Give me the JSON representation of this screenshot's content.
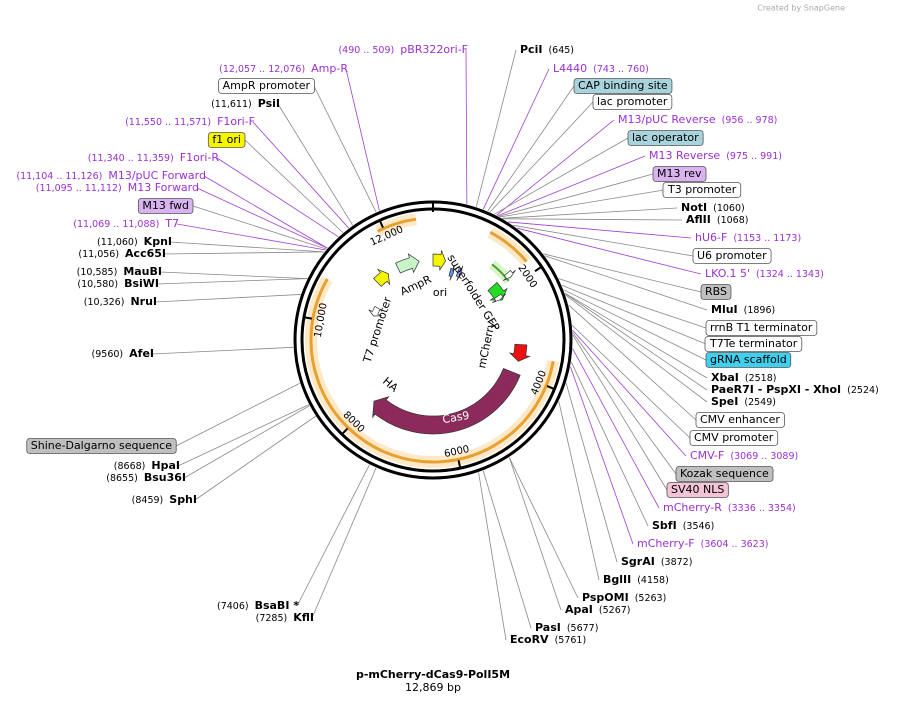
{
  "header": {
    "credit": "Created by SnapGene"
  },
  "title": "p-mCherry-dCas9-PolI5M",
  "size": "12,869 bp",
  "labels": [
    {
      "name": "PciI",
      "range": "(645)",
      "kind": "site"
    },
    {
      "name": "L4440",
      "range": "(743 .. 760)",
      "kind": "primer"
    },
    {
      "name": "CAP binding site",
      "kind": "feature",
      "color": "#a8d3dd"
    },
    {
      "name": "lac promoter",
      "kind": "feature",
      "color": "#ffffff"
    },
    {
      "name": "M13/pUC Reverse",
      "range": "(956 .. 978)",
      "kind": "primer"
    },
    {
      "name": "lac operator",
      "kind": "feature",
      "color": "#a8d3dd"
    },
    {
      "name": "M13 Reverse",
      "range": "(975 .. 991)",
      "kind": "primer"
    },
    {
      "name": "M13 rev",
      "kind": "feature",
      "color": "#d9b3ef"
    },
    {
      "name": "T3 promoter",
      "kind": "feature",
      "color": "#ffffff"
    },
    {
      "name": "NotI",
      "range": "(1060)",
      "kind": "site"
    },
    {
      "name": "AflII",
      "range": "(1068)",
      "kind": "site"
    },
    {
      "name": "hU6-F",
      "range": "(1153 .. 1173)",
      "kind": "primer"
    },
    {
      "name": "U6 promoter",
      "kind": "feature",
      "color": "#ffffff"
    },
    {
      "name": "LKO.1 5'",
      "range": "(1324 .. 1343)",
      "kind": "primer"
    },
    {
      "name": "RBS",
      "kind": "feature",
      "color": "#bfbfbf"
    },
    {
      "name": "MluI",
      "range": "(1896)",
      "kind": "site"
    },
    {
      "name": "rrnB T1 terminator",
      "kind": "feature",
      "color": "#ffffff"
    },
    {
      "name": "T7Te terminator",
      "kind": "feature",
      "color": "#ffffff"
    },
    {
      "name": "gRNA scaffold",
      "kind": "feature",
      "color": "#3fd0f0"
    },
    {
      "name": "XbaI",
      "range": "(2518)",
      "kind": "site"
    },
    {
      "name": "PaeR7I - PspXI - XhoI",
      "range": "(2524)",
      "kind": "site"
    },
    {
      "name": "SpeI",
      "range": "(2549)",
      "kind": "site"
    },
    {
      "name": "CMV enhancer",
      "kind": "feature",
      "color": "#ffffff"
    },
    {
      "name": "CMV promoter",
      "kind": "feature",
      "color": "#ffffff"
    },
    {
      "name": "CMV-F",
      "range": "(3069 .. 3089)",
      "kind": "primer"
    },
    {
      "name": "Kozak sequence",
      "kind": "feature",
      "color": "#bfbfbf"
    },
    {
      "name": "SV40 NLS",
      "kind": "feature",
      "color": "#f2c4d6"
    },
    {
      "name": "mCherry-R",
      "range": "(3336 .. 3354)",
      "kind": "primer"
    },
    {
      "name": "SbfI",
      "range": "(3546)",
      "kind": "site"
    },
    {
      "name": "mCherry-F",
      "range": "(3604 .. 3623)",
      "kind": "primer"
    },
    {
      "name": "SgrAI",
      "range": "(3872)",
      "kind": "site"
    },
    {
      "name": "BglII",
      "range": "(4158)",
      "kind": "site"
    },
    {
      "name": "PspOMI",
      "range": "(5263)",
      "kind": "site"
    },
    {
      "name": "ApaI",
      "range": "(5267)",
      "kind": "site"
    },
    {
      "name": "PasI",
      "range": "(5677)",
      "kind": "site"
    },
    {
      "name": "EcoRV",
      "range": "(5761)",
      "kind": "site"
    },
    {
      "name": "pBR322ori-F",
      "range": "(490 .. 509)",
      "kind": "primer"
    },
    {
      "name": "Amp-R",
      "range": "(12,057 .. 12,076)",
      "kind": "primer"
    },
    {
      "name": "AmpR promoter",
      "kind": "feature",
      "color": "#ffffff"
    },
    {
      "name": "PsiI",
      "range": "(11,611)",
      "kind": "site"
    },
    {
      "name": "F1ori-F",
      "range": "(11,550 .. 11,571)",
      "kind": "primer"
    },
    {
      "name": "f1 ori",
      "kind": "feature",
      "color": "#f5f500"
    },
    {
      "name": "F1ori-R",
      "range": "(11,340 .. 11,359)",
      "kind": "primer"
    },
    {
      "name": "M13/pUC Forward",
      "range": "(11,104 .. 11,126)",
      "kind": "primer"
    },
    {
      "name": "M13 Forward",
      "range": "(11,095 .. 11,112)",
      "kind": "primer"
    },
    {
      "name": "M13 fwd",
      "kind": "feature",
      "color": "#d9b3ef"
    },
    {
      "name": "T7",
      "range": "(11,069 .. 11,088)",
      "kind": "primer"
    },
    {
      "name": "KpnI",
      "range": "(11,060)",
      "kind": "site"
    },
    {
      "name": "Acc65I",
      "range": "(11,056)",
      "kind": "site"
    },
    {
      "name": "MauBI",
      "range": "(10,585)",
      "kind": "site"
    },
    {
      "name": "BsiWI",
      "range": "(10,580)",
      "kind": "site"
    },
    {
      "name": "NruI",
      "range": "(10,326)",
      "kind": "site"
    },
    {
      "name": "AfeI",
      "range": "(9560)",
      "kind": "site"
    },
    {
      "name": "Shine-Dalgarno sequence",
      "kind": "feature",
      "color": "#bfbfbf"
    },
    {
      "name": "HpaI",
      "range": "(8668)",
      "kind": "site"
    },
    {
      "name": "Bsu36I",
      "range": "(8655)",
      "kind": "site"
    },
    {
      "name": "SphI",
      "range": "(8459)",
      "kind": "site"
    },
    {
      "name": "BsaBI *",
      "range": "(7406)",
      "kind": "site"
    },
    {
      "name": "KflI",
      "range": "(7285)",
      "kind": "site"
    }
  ],
  "features": [
    "AmpR",
    "ori",
    "superfolder GFP",
    "mCherry",
    "Cas9",
    "HA",
    "T7 promoter"
  ],
  "ticks": [
    "2000",
    "4000",
    "6000",
    "8000",
    "10,000",
    "12,000"
  ]
}
